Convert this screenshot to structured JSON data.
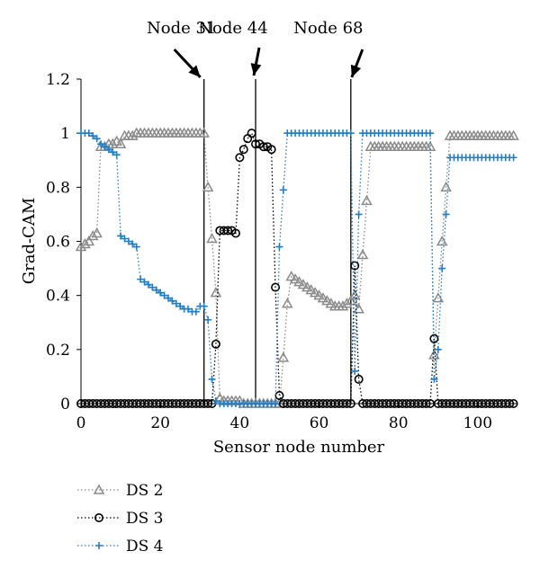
{
  "chart_data": {
    "type": "line",
    "xlabel": "Sensor node number",
    "ylabel": "Grad-CAM",
    "xlim": [
      0,
      110
    ],
    "ylim": [
      0,
      1.2
    ],
    "xticks": [
      "0",
      "20",
      "40",
      "60",
      "80",
      "100"
    ],
    "yticks": [
      "0",
      "0.2",
      "0.4",
      "0.6",
      "0.8",
      "1",
      "1.2"
    ],
    "grid": false,
    "legend_position": "bottom-left",
    "annotations": [
      {
        "label": "Node 31",
        "x": 31
      },
      {
        "label": "Node 44",
        "x": 44
      },
      {
        "label": "Node 68",
        "x": 68
      }
    ],
    "series": [
      {
        "name": "DS 2",
        "color": "#8a8a8a",
        "marker": "triangle",
        "x": [
          0,
          1,
          2,
          3,
          4,
          5,
          6,
          7,
          8,
          9,
          10,
          11,
          12,
          13,
          14,
          15,
          16,
          17,
          18,
          19,
          20,
          21,
          22,
          23,
          24,
          25,
          26,
          27,
          28,
          29,
          30,
          31,
          32,
          33,
          34,
          35,
          36,
          37,
          38,
          39,
          40,
          41,
          42,
          43,
          44,
          45,
          46,
          47,
          48,
          49,
          50,
          51,
          52,
          53,
          54,
          55,
          56,
          57,
          58,
          59,
          60,
          61,
          62,
          63,
          64,
          65,
          66,
          67,
          68,
          69,
          70,
          71,
          72,
          73,
          74,
          75,
          76,
          77,
          78,
          79,
          80,
          81,
          82,
          83,
          84,
          85,
          86,
          87,
          88,
          89,
          90,
          91,
          92,
          93,
          94,
          95,
          96,
          97,
          98,
          99,
          100,
          101,
          102,
          103,
          104,
          105,
          106,
          107,
          108,
          109
        ],
        "values": [
          0.58,
          0.59,
          0.6,
          0.62,
          0.63,
          0.95,
          0.95,
          0.96,
          0.96,
          0.97,
          0.96,
          0.99,
          0.99,
          0.99,
          1.0,
          1.0,
          1.0,
          1.0,
          1.0,
          1.0,
          1.0,
          1.0,
          1.0,
          1.0,
          1.0,
          1.0,
          1.0,
          1.0,
          1.0,
          1.0,
          1.0,
          1.0,
          0.8,
          0.61,
          0.41,
          0.02,
          0.01,
          0.01,
          0.01,
          0.01,
          0.01,
          0.0,
          0.0,
          0.0,
          0.0,
          0.0,
          0.0,
          0.0,
          0.0,
          0.0,
          0.0,
          0.17,
          0.37,
          0.47,
          0.46,
          0.45,
          0.44,
          0.43,
          0.42,
          0.41,
          0.4,
          0.39,
          0.38,
          0.37,
          0.36,
          0.36,
          0.36,
          0.37,
          0.38,
          0.4,
          0.35,
          0.55,
          0.75,
          0.95,
          0.95,
          0.95,
          0.95,
          0.95,
          0.95,
          0.95,
          0.95,
          0.95,
          0.95,
          0.95,
          0.95,
          0.95,
          0.95,
          0.95,
          0.95,
          0.18,
          0.39,
          0.6,
          0.8,
          0.99,
          0.99,
          0.99,
          0.99,
          0.99,
          0.99,
          0.99,
          0.99,
          0.99,
          0.99,
          0.99,
          0.99,
          0.99,
          0.99,
          0.99,
          0.99,
          0.99
        ]
      },
      {
        "name": "DS 3",
        "color": "#000000",
        "marker": "circle",
        "x": [
          0,
          1,
          2,
          3,
          4,
          5,
          6,
          7,
          8,
          9,
          10,
          11,
          12,
          13,
          14,
          15,
          16,
          17,
          18,
          19,
          20,
          21,
          22,
          23,
          24,
          25,
          26,
          27,
          28,
          29,
          30,
          31,
          32,
          33,
          34,
          35,
          36,
          37,
          38,
          39,
          40,
          41,
          42,
          43,
          44,
          45,
          46,
          47,
          48,
          49,
          50,
          51,
          52,
          53,
          54,
          55,
          56,
          57,
          58,
          59,
          60,
          61,
          62,
          63,
          64,
          65,
          66,
          67,
          68,
          69,
          70,
          71,
          72,
          73,
          74,
          75,
          76,
          77,
          78,
          79,
          80,
          81,
          82,
          83,
          84,
          85,
          86,
          87,
          88,
          89,
          90,
          91,
          92,
          93,
          94,
          95,
          96,
          97,
          98,
          99,
          100,
          101,
          102,
          103,
          104,
          105,
          106,
          107,
          108,
          109
        ],
        "values": [
          0,
          0,
          0,
          0,
          0,
          0,
          0,
          0,
          0,
          0,
          0,
          0,
          0,
          0,
          0,
          0,
          0,
          0,
          0,
          0,
          0,
          0,
          0,
          0,
          0,
          0,
          0,
          0,
          0,
          0,
          0,
          0,
          0,
          0,
          0.22,
          0.64,
          0.64,
          0.64,
          0.64,
          0.63,
          0.91,
          0.94,
          0.98,
          1.0,
          0.96,
          0.96,
          0.95,
          0.95,
          0.94,
          0.43,
          0.03,
          0,
          0,
          0,
          0,
          0,
          0,
          0,
          0,
          0,
          0,
          0,
          0,
          0,
          0,
          0,
          0,
          0,
          0,
          0.51,
          0.09,
          0,
          0,
          0,
          0,
          0,
          0,
          0,
          0,
          0,
          0,
          0,
          0,
          0,
          0,
          0,
          0,
          0,
          0,
          0.24,
          0,
          0,
          0,
          0,
          0,
          0,
          0,
          0,
          0,
          0,
          0,
          0,
          0,
          0,
          0,
          0,
          0,
          0,
          0,
          0
        ]
      },
      {
        "name": "DS 4",
        "color": "#1f7ec8",
        "marker": "plus",
        "x": [
          0,
          1,
          2,
          3,
          4,
          5,
          6,
          7,
          8,
          9,
          10,
          11,
          12,
          13,
          14,
          15,
          16,
          17,
          18,
          19,
          20,
          21,
          22,
          23,
          24,
          25,
          26,
          27,
          28,
          29,
          30,
          31,
          32,
          33,
          34,
          35,
          36,
          37,
          38,
          39,
          40,
          41,
          42,
          43,
          44,
          45,
          46,
          47,
          48,
          49,
          50,
          51,
          52,
          53,
          54,
          55,
          56,
          57,
          58,
          59,
          60,
          61,
          62,
          63,
          64,
          65,
          66,
          67,
          68,
          69,
          70,
          71,
          72,
          73,
          74,
          75,
          76,
          77,
          78,
          79,
          80,
          81,
          82,
          83,
          84,
          85,
          86,
          87,
          88,
          89,
          90,
          91,
          92,
          93,
          94,
          95,
          96,
          97,
          98,
          99,
          100,
          101,
          102,
          103,
          104,
          105,
          106,
          107,
          108,
          109
        ],
        "values": [
          1.0,
          1.0,
          1.0,
          0.99,
          0.98,
          0.96,
          0.95,
          0.94,
          0.93,
          0.92,
          0.62,
          0.61,
          0.6,
          0.59,
          0.58,
          0.46,
          0.45,
          0.44,
          0.43,
          0.42,
          0.41,
          0.4,
          0.39,
          0.38,
          0.37,
          0.36,
          0.35,
          0.35,
          0.34,
          0.34,
          0.36,
          0.36,
          0.31,
          0.09,
          0.01,
          0.0,
          0.0,
          0.0,
          0.0,
          0.0,
          0.0,
          0.0,
          0.0,
          0.0,
          0.0,
          0.0,
          0.0,
          0.0,
          0.0,
          0.0,
          0.58,
          0.79,
          1.0,
          1.0,
          1.0,
          1.0,
          1.0,
          1.0,
          1.0,
          1.0,
          1.0,
          1.0,
          1.0,
          1.0,
          1.0,
          1.0,
          1.0,
          1.0,
          1.0,
          0.12,
          0.7,
          1.0,
          1.0,
          1.0,
          1.0,
          1.0,
          1.0,
          1.0,
          1.0,
          1.0,
          1.0,
          1.0,
          1.0,
          1.0,
          1.0,
          1.0,
          1.0,
          1.0,
          1.0,
          0.09,
          0.2,
          0.5,
          0.7,
          0.91,
          0.91,
          0.91,
          0.91,
          0.91,
          0.91,
          0.91,
          0.91,
          0.91,
          0.91,
          0.91,
          0.91,
          0.91,
          0.91,
          0.91,
          0.91,
          0.91
        ]
      }
    ]
  }
}
